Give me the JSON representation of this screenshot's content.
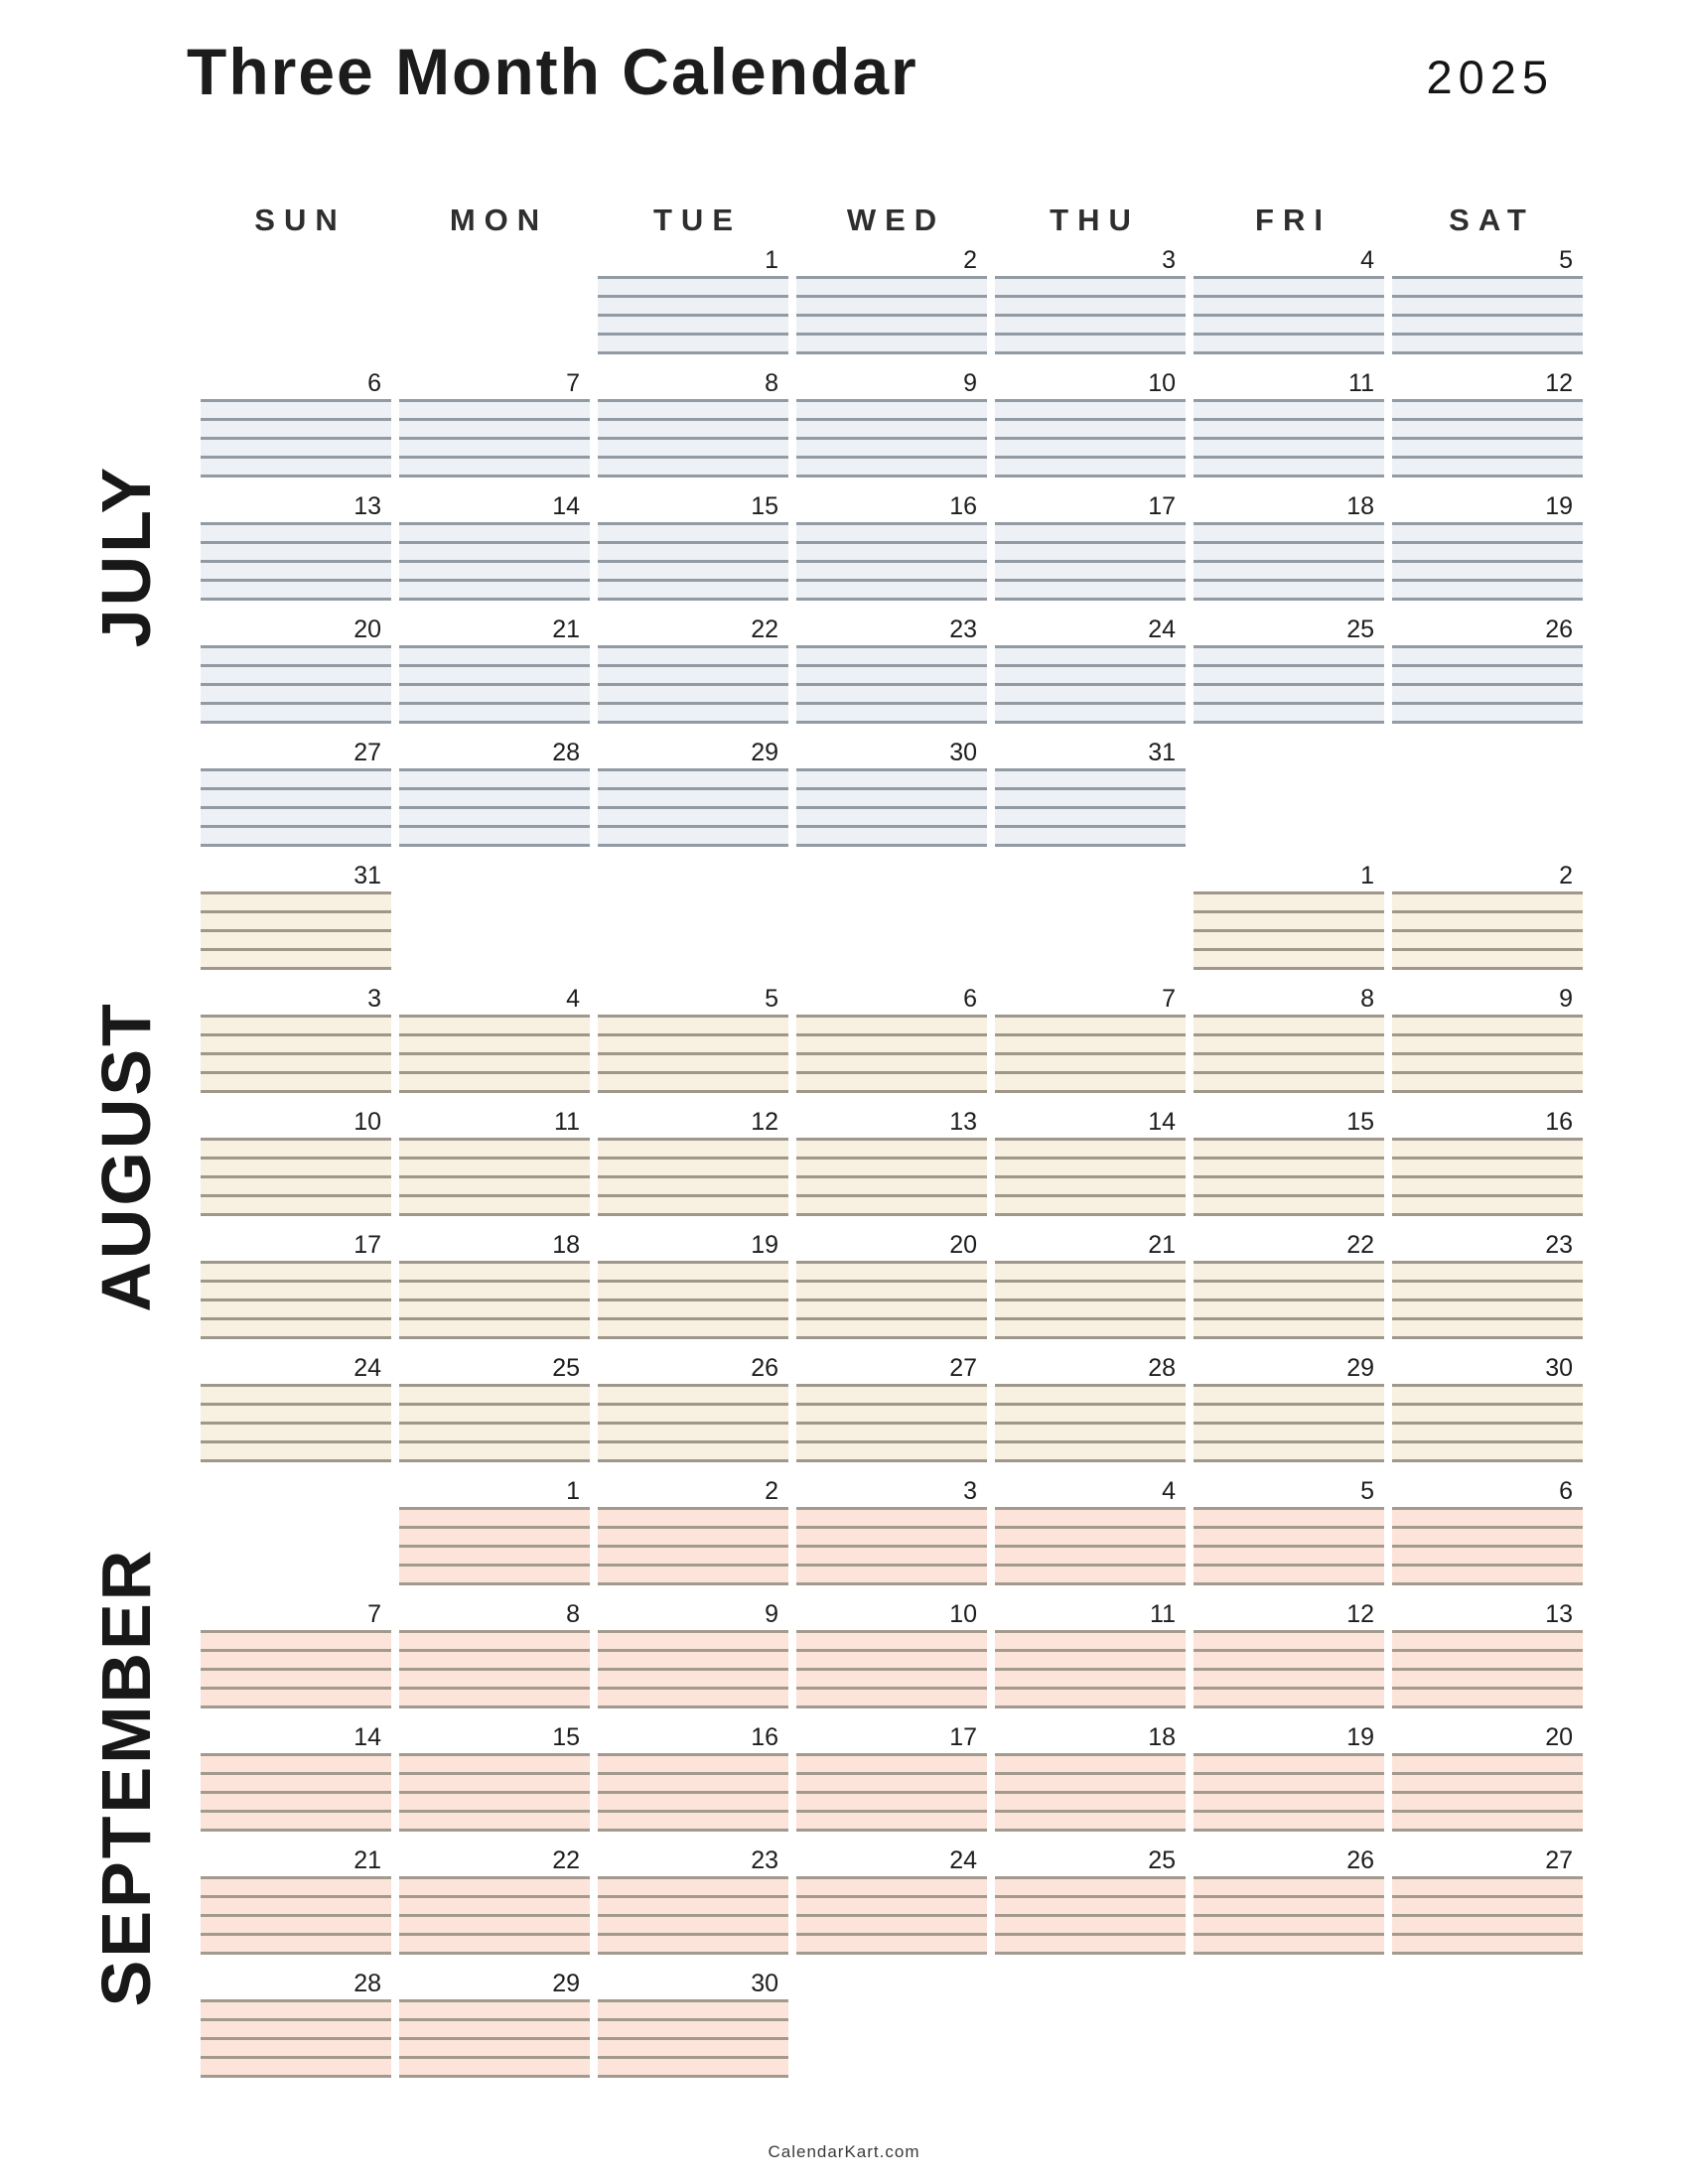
{
  "page": {
    "title": "Three Month Calendar",
    "year": "2025",
    "footer": "CalendarKart.com"
  },
  "weekdays": [
    "SUN",
    "MON",
    "TUE",
    "WED",
    "THU",
    "FRI",
    "SAT"
  ],
  "months": [
    {
      "name": "JULY",
      "theme": {
        "bg": "#edf1f6",
        "line": "#929aa3"
      },
      "rows": [
        [
          "",
          "",
          "1",
          "2",
          "3",
          "4",
          "5"
        ],
        [
          "6",
          "7",
          "8",
          "9",
          "10",
          "11",
          "12"
        ],
        [
          "13",
          "14",
          "15",
          "16",
          "17",
          "18",
          "19"
        ],
        [
          "20",
          "21",
          "22",
          "23",
          "24",
          "25",
          "26"
        ],
        [
          "27",
          "28",
          "29",
          "30",
          "31",
          "",
          ""
        ]
      ]
    },
    {
      "name": "AUGUST",
      "theme": {
        "bg": "#f8f0e0",
        "line": "#9e978a"
      },
      "rows": [
        [
          "31",
          "",
          "",
          "",
          "",
          "1",
          "2"
        ],
        [
          "3",
          "4",
          "5",
          "6",
          "7",
          "8",
          "9"
        ],
        [
          "10",
          "11",
          "12",
          "13",
          "14",
          "15",
          "16"
        ],
        [
          "17",
          "18",
          "19",
          "20",
          "21",
          "22",
          "23"
        ],
        [
          "24",
          "25",
          "26",
          "27",
          "28",
          "29",
          "30"
        ]
      ]
    },
    {
      "name": "SEPTEMBER",
      "theme": {
        "bg": "#fce4da",
        "line": "#a39a8f"
      },
      "rows": [
        [
          "",
          "1",
          "2",
          "3",
          "4",
          "5",
          "6"
        ],
        [
          "7",
          "8",
          "9",
          "10",
          "11",
          "12",
          "13"
        ],
        [
          "14",
          "15",
          "16",
          "17",
          "18",
          "19",
          "20"
        ],
        [
          "21",
          "22",
          "23",
          "24",
          "25",
          "26",
          "27"
        ],
        [
          "28",
          "29",
          "30",
          "",
          "",
          "",
          ""
        ]
      ]
    }
  ]
}
